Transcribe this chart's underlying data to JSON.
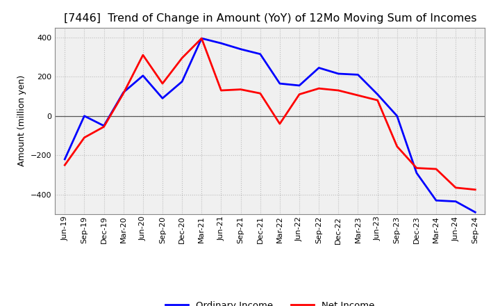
{
  "title": "[7446]  Trend of Change in Amount (YoY) of 12Mo Moving Sum of Incomes",
  "ylabel": "Amount (million yen)",
  "background_color": "#ffffff",
  "plot_bg_color": "#f0f0f0",
  "grid_color": "#bbbbbb",
  "x_labels": [
    "Jun-19",
    "Sep-19",
    "Dec-19",
    "Mar-20",
    "Jun-20",
    "Sep-20",
    "Dec-20",
    "Mar-21",
    "Jun-21",
    "Sep-21",
    "Dec-21",
    "Mar-22",
    "Jun-22",
    "Sep-22",
    "Dec-22",
    "Mar-23",
    "Jun-23",
    "Sep-23",
    "Dec-23",
    "Mar-24",
    "Jun-24",
    "Sep-24"
  ],
  "ordinary_income": [
    -220,
    0,
    -50,
    120,
    205,
    90,
    175,
    395,
    370,
    340,
    315,
    165,
    155,
    245,
    215,
    210,
    110,
    0,
    -290,
    -430,
    -435,
    -490
  ],
  "net_income": [
    -250,
    -110,
    -55,
    115,
    310,
    165,
    295,
    395,
    130,
    135,
    115,
    -40,
    110,
    140,
    130,
    105,
    80,
    -155,
    -265,
    -270,
    -365,
    -375
  ],
  "ylim": [
    -500,
    450
  ],
  "yticks": [
    -400,
    -200,
    0,
    200,
    400
  ],
  "ordinary_color": "#0000ff",
  "net_color": "#ff0000",
  "line_width": 2.0,
  "title_fontsize": 11.5,
  "axis_label_fontsize": 9,
  "tick_fontsize": 8,
  "legend_labels": [
    "Ordinary Income",
    "Net Income"
  ],
  "legend_fontsize": 9.5
}
